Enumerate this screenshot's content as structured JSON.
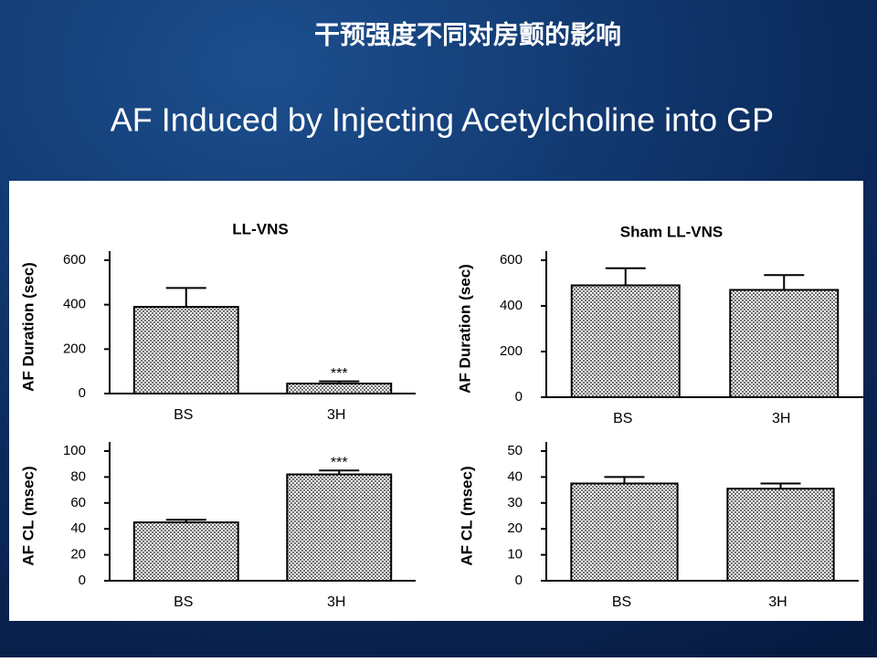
{
  "slide": {
    "title": "干预强度不同对房颤的影响",
    "subtitle": "AF Induced by Injecting Acetylcholine into GP"
  },
  "chart_data": [
    {
      "type": "bar",
      "title": "LL-VNS",
      "y_label": "AF Duration (sec)",
      "categories": [
        "BS",
        "3H"
      ],
      "series": [
        {
          "color": "#707070",
          "values": [
            390,
            45
          ],
          "errors": [
            85,
            10
          ]
        }
      ],
      "annotations": [
        {
          "text": "***",
          "x": "3H"
        }
      ],
      "ylim": [
        0,
        600
      ],
      "yticks": [
        0,
        200,
        400,
        600
      ]
    },
    {
      "type": "bar",
      "title": "Sham LL-VNS",
      "y_label": "AF Duration (sec)",
      "categories": [
        "BS",
        "3H"
      ],
      "series": [
        {
          "color": "#707070",
          "values": [
            490,
            470
          ],
          "errors": [
            75,
            65
          ]
        }
      ],
      "ylim": [
        0,
        600
      ],
      "yticks": [
        0,
        200,
        400,
        600
      ]
    },
    {
      "type": "bar",
      "y_label": "AF CL (msec)",
      "categories": [
        "BS",
        "3H"
      ],
      "series": [
        {
          "color": "#707070",
          "values": [
            45,
            82
          ],
          "errors": [
            2,
            3
          ]
        }
      ],
      "annotations": [
        {
          "text": "***",
          "x": "3H"
        }
      ],
      "ylim": [
        0,
        100
      ],
      "yticks": [
        0,
        20,
        40,
        60,
        80,
        100
      ]
    },
    {
      "type": "bar",
      "y_label": "AF CL (msec)",
      "categories": [
        "BS",
        "3H"
      ],
      "series": [
        {
          "color": "#707070",
          "values": [
            37.5,
            35.5
          ],
          "errors": [
            2.5,
            2
          ]
        }
      ],
      "ylim": [
        0,
        50
      ],
      "yticks": [
        0,
        10,
        20,
        30,
        40,
        50
      ]
    }
  ]
}
